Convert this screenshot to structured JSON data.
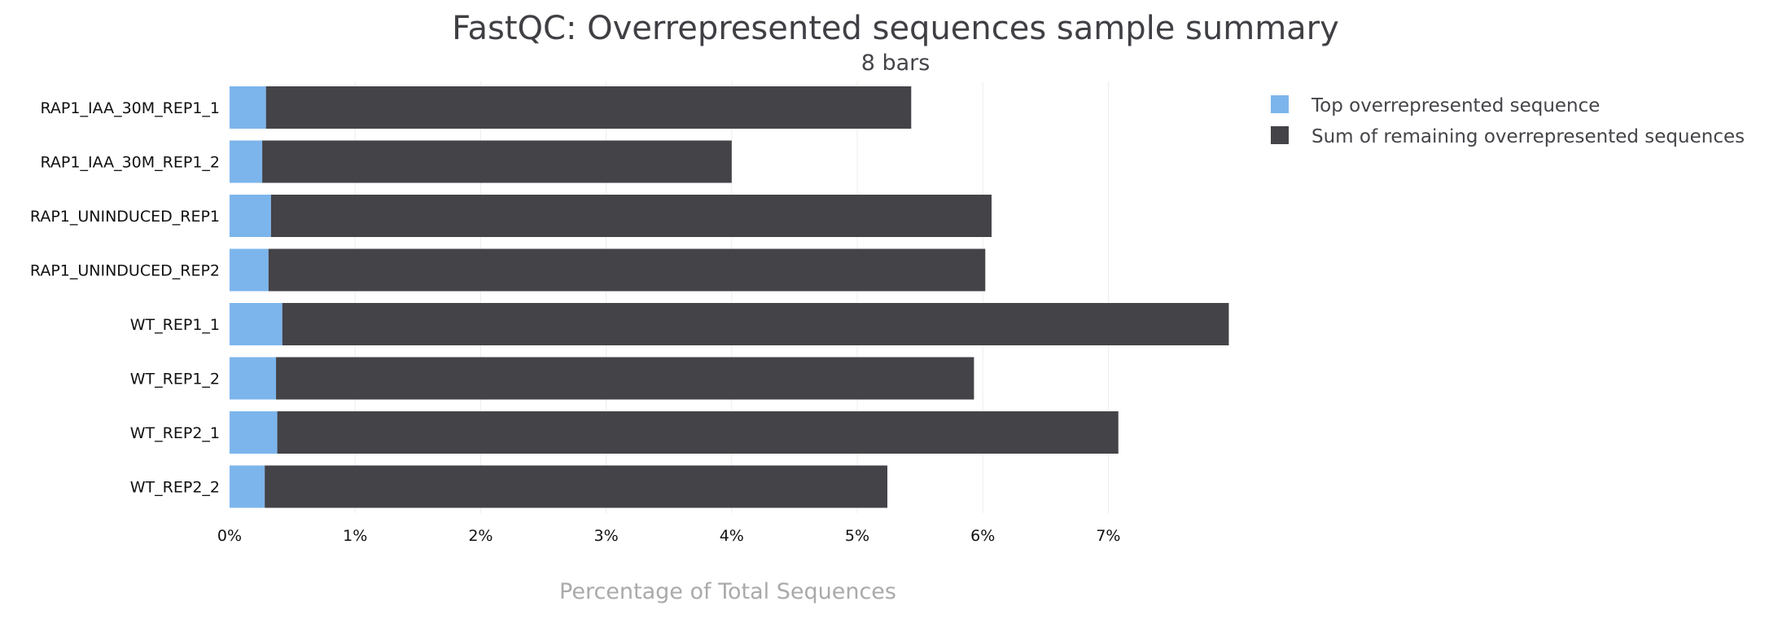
{
  "chart_data": {
    "type": "bar",
    "orientation": "horizontal",
    "stacked": true,
    "title": "FastQC: Overrepresented sequences sample summary",
    "subtitle": "8 bars",
    "xlabel": "Percentage of Total Sequences",
    "ylabel": "",
    "xlim": [
      0,
      8
    ],
    "xticks": [
      0,
      1,
      2,
      3,
      4,
      5,
      6,
      7
    ],
    "xtick_labels": [
      "0%",
      "1%",
      "2%",
      "3%",
      "4%",
      "5%",
      "6%",
      "7%"
    ],
    "grid": true,
    "legend_position": "top-right",
    "categories": [
      "RAP1_IAA_30M_REP1_1",
      "RAP1_IAA_30M_REP1_2",
      "RAP1_UNINDUCED_REP1",
      "RAP1_UNINDUCED_REP2",
      "WT_REP1_1",
      "WT_REP1_2",
      "WT_REP2_1",
      "WT_REP2_2"
    ],
    "series": [
      {
        "name": "Top overrepresented sequence",
        "color": "#7cb5ec",
        "values": [
          0.29,
          0.26,
          0.33,
          0.31,
          0.42,
          0.37,
          0.38,
          0.28
        ]
      },
      {
        "name": "Sum of remaining overrepresented sequences",
        "color": "#434348",
        "values": [
          5.14,
          3.74,
          5.74,
          5.71,
          7.54,
          5.56,
          6.7,
          4.96
        ]
      }
    ]
  }
}
